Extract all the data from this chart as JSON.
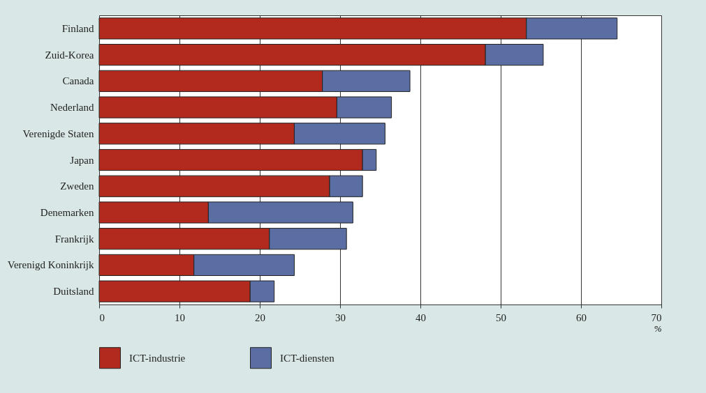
{
  "chart_data": {
    "type": "bar",
    "orientation": "horizontal",
    "stacked": true,
    "categories": [
      "Finland",
      "Zuid-Korea",
      "Canada",
      "Nederland",
      "Verenigde Staten",
      "Japan",
      "Zweden",
      "Denemarken",
      "Frankrijk",
      "Verenigd Koninkrijk",
      "Duitsland"
    ],
    "series": [
      {
        "name": "ICT-industrie",
        "color": "#b22a1e",
        "values": [
          53.2,
          48.1,
          27.8,
          29.6,
          24.3,
          32.8,
          28.7,
          13.6,
          21.2,
          11.8,
          18.8
        ]
      },
      {
        "name": "ICT-diensten",
        "color": "#5a6ea3",
        "values": [
          11.3,
          7.2,
          10.9,
          6.8,
          11.3,
          1.7,
          4.1,
          18.0,
          9.6,
          12.5,
          3.0
        ]
      }
    ],
    "xlabel": "%",
    "xlim": [
      0,
      70
    ],
    "xticks": [
      0,
      10,
      20,
      30,
      40,
      50,
      60,
      70
    ],
    "grid": "x",
    "legend": "bottom left"
  }
}
